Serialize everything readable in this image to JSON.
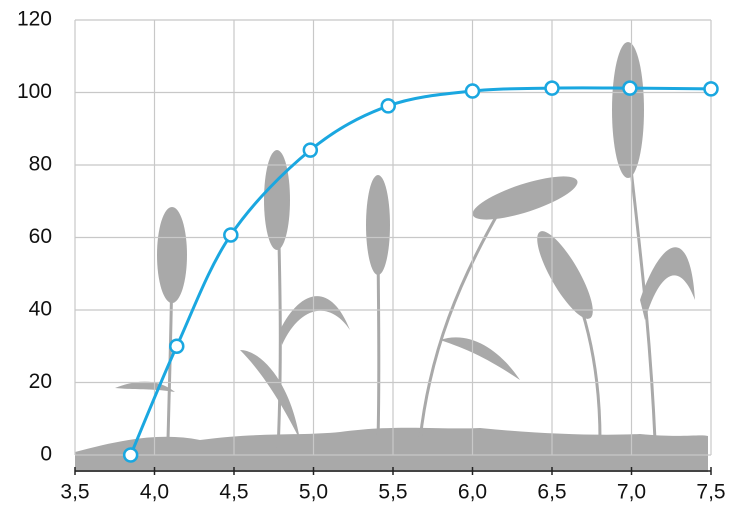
{
  "chart_data": {
    "type": "line",
    "x": [
      3.85,
      4.14,
      4.48,
      4.98,
      5.47,
      6.0,
      6.5,
      6.99,
      7.5
    ],
    "series": [
      {
        "color": "#1aa7e0",
        "values": [
          0,
          30,
          60.7,
          84.1,
          96.3,
          100.4,
          101.2,
          101.2,
          101
        ]
      }
    ],
    "xlim": [
      3.5,
      7.5
    ],
    "xticks": [
      {
        "value": 3.5,
        "label": "3,5"
      },
      {
        "value": 4.0,
        "label": "4,0"
      },
      {
        "value": 4.5,
        "label": "4,5"
      },
      {
        "value": 5.0,
        "label": "5,0"
      },
      {
        "value": 5.5,
        "label": "5,5"
      },
      {
        "value": 6.0,
        "label": "6,0"
      },
      {
        "value": 6.5,
        "label": "6,5"
      },
      {
        "value": 7.0,
        "label": "7,0"
      },
      {
        "value": 7.5,
        "label": "7,5"
      }
    ],
    "ylim": [
      0,
      120
    ],
    "yticks": [
      0,
      20,
      40,
      60,
      80,
      100,
      120
    ],
    "grid": true
  }
}
